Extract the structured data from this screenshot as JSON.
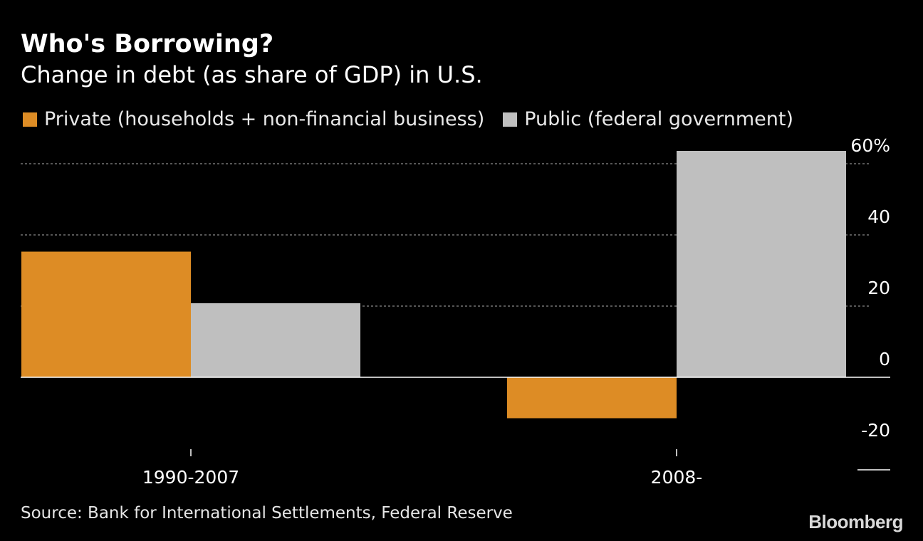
{
  "chart_data": {
    "type": "bar",
    "title": "Who's Borrowing?",
    "subtitle": "Change in debt (as share of GDP) in U.S.",
    "categories": [
      "1990-2007",
      "2008-"
    ],
    "series": [
      {
        "name": "Private (households + non-financial business)",
        "color": "#dd8c25",
        "values": [
          35.3,
          -11.5
        ]
      },
      {
        "name": "Public (federal government)",
        "color": "#bfbfbf",
        "values": [
          20.8,
          63.6
        ]
      }
    ],
    "ylim": [
      -20,
      60
    ],
    "yticks": [
      60,
      40,
      20,
      0,
      -20
    ],
    "ytick_labels": [
      "60%",
      "40",
      "20",
      "0",
      "-20"
    ],
    "grid": true,
    "legend_position": "top-left",
    "xlabel": "",
    "ylabel": ""
  },
  "source": "Source: Bank for International Settlements, Federal Reserve",
  "brand": "Bloomberg"
}
